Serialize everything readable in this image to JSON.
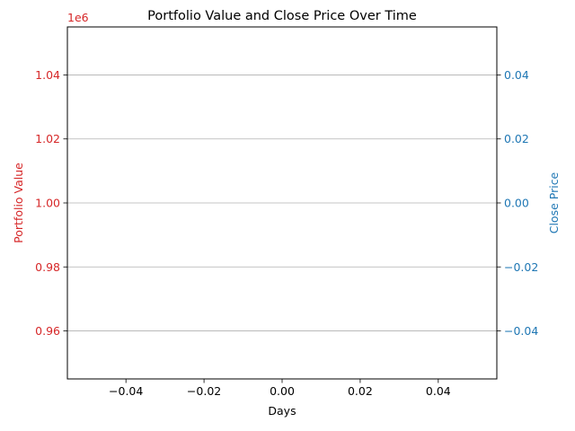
{
  "chart_data": {
    "type": "line",
    "title": "Portfolio Value and Close Price Over Time",
    "xlabel": "Days",
    "x_ticks": [
      "−0.04",
      "−0.02",
      "0.00",
      "0.02",
      "0.04"
    ],
    "x_tick_values": [
      -0.04,
      -0.02,
      0.0,
      0.02,
      0.04
    ],
    "xlim": [
      -0.055,
      0.055
    ],
    "left_axis": {
      "label": "Portfolio Value",
      "color": "#d62728",
      "offset_text": "1e6",
      "ticks": [
        "0.96",
        "0.98",
        "1.00",
        "1.02",
        "1.04"
      ],
      "tick_values": [
        0.96,
        0.98,
        1.0,
        1.02,
        1.04
      ],
      "ylim": [
        0.945,
        1.055
      ]
    },
    "right_axis": {
      "label": "Close Price",
      "color": "#1f77b4",
      "ticks": [
        "−0.04",
        "−0.02",
        "0.00",
        "0.02",
        "0.04"
      ],
      "tick_values": [
        -0.04,
        -0.02,
        0.0,
        0.02,
        0.04
      ],
      "ylim": [
        -0.055,
        0.055
      ]
    },
    "grid": true,
    "series": []
  }
}
